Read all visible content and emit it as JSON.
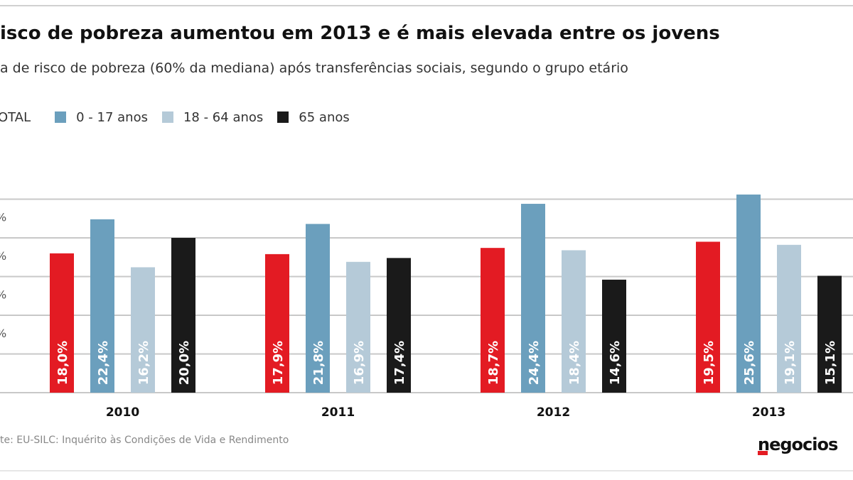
{
  "title": "isco de pobreza aumentou em 2013 e é mais elevada entre os jovens",
  "subtitle": "a de risco de pobreza (60% da mediana) após transferências sociais, segundo o grupo etário",
  "source": "te: EU-SILC: Inquérito às Condições de Vida e Rendimento",
  "logo": "negocios",
  "colors": {
    "total": "#e31b23",
    "age_0_17": "#6b9fbd",
    "age_18_64": "#b5cad8",
    "age_65": "#1a1a1a",
    "grid": "#c8c8c8"
  },
  "chart_data": {
    "type": "bar",
    "title": "isco de pobreza aumentou em 2013 e é mais elevada entre os jovens",
    "categories": [
      "2010",
      "2011",
      "2012",
      "2013"
    ],
    "series": [
      {
        "name": "TOTAL",
        "values": [
          18.0,
          17.9,
          18.7,
          19.5
        ],
        "labels": [
          "18,0%",
          "17,9%",
          "18,7%",
          "19,5%"
        ]
      },
      {
        "name": "0 - 17 anos",
        "values": [
          22.4,
          21.8,
          24.4,
          25.6
        ],
        "labels": [
          "22,4%",
          "21,8%",
          "24,4%",
          "25,6%"
        ]
      },
      {
        "name": "18 - 64 anos",
        "values": [
          16.2,
          16.9,
          18.4,
          19.1
        ],
        "labels": [
          "16,2%",
          "16,9%",
          "18,4%",
          "19,1%"
        ]
      },
      {
        "name": "65 anos",
        "values": [
          20.0,
          17.4,
          14.6,
          15.1
        ],
        "labels": [
          "20,0%",
          "17,4%",
          "14,6%",
          "15,1%"
        ]
      }
    ],
    "ylim": [
      0,
      30
    ],
    "grid": true,
    "legend": "top-left",
    "ytick_labels": [
      "%",
      "%",
      "%",
      "%"
    ]
  }
}
